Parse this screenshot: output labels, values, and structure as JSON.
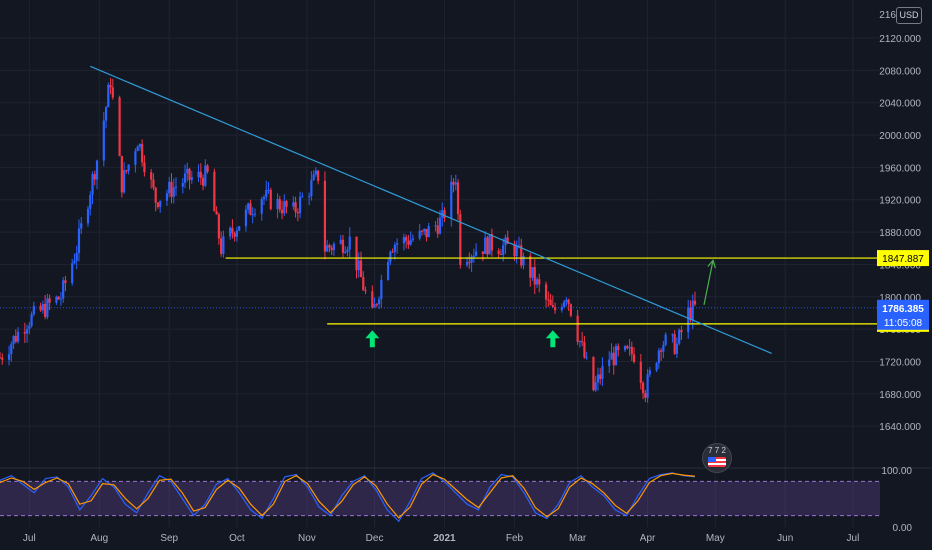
{
  "currency": "USD",
  "badge": {
    "text": "7 7 2",
    "icon": "us-flag-icon"
  },
  "chart_data": [
    {
      "type": "candlestick",
      "title": "",
      "colors": {
        "up": "#2962ff",
        "down": "#f23645",
        "background": "#131722",
        "grid": "#1f2330",
        "trendline": "#2f9bd6",
        "level": "#ffff00",
        "arrow": "#00e676",
        "projection": "#4caf50"
      },
      "x_start": "2020-06-18",
      "x_end": "2021-07-13",
      "xlim": [
        "2020-06-18",
        "2021-07-13"
      ],
      "ylim": [
        1592,
        2167
      ],
      "y_ticks": [
        1640,
        1680,
        1720,
        1760,
        1800,
        1840,
        1880,
        1920,
        1960,
        2000,
        2040,
        2080,
        2120
      ],
      "y_tick_labels": [
        "1640.000",
        "1680.000",
        "1720.000",
        "1760.000",
        "1800.000",
        "1840.000",
        "1880.000",
        "1920.000",
        "1960.000",
        "2000.000",
        "2040.000",
        "2080.000",
        "2120.000"
      ],
      "y_top_partial_label": "2160.000",
      "x_ticks": [
        {
          "date": "2020-07-01",
          "label": "Jul",
          "bold": false
        },
        {
          "date": "2020-08-01",
          "label": "Aug",
          "bold": false
        },
        {
          "date": "2020-09-01",
          "label": "Sep",
          "bold": false
        },
        {
          "date": "2020-10-01",
          "label": "Oct",
          "bold": false
        },
        {
          "date": "2020-11-01",
          "label": "Nov",
          "bold": false
        },
        {
          "date": "2020-12-01",
          "label": "Dec",
          "bold": false
        },
        {
          "date": "2021-01-01",
          "label": "2021",
          "bold": true
        },
        {
          "date": "2021-02-01",
          "label": "Feb",
          "bold": false
        },
        {
          "date": "2021-03-01",
          "label": "Mar",
          "bold": false
        },
        {
          "date": "2021-04-01",
          "label": "Apr",
          "bold": false
        },
        {
          "date": "2021-05-01",
          "label": "May",
          "bold": false
        },
        {
          "date": "2021-06-01",
          "label": "Jun",
          "bold": false
        },
        {
          "date": "2021-07-01",
          "label": "Jul",
          "bold": false
        }
      ],
      "price_path": [
        [
          "2020-06-18",
          1725
        ],
        [
          "2020-06-30",
          1770
        ],
        [
          "2020-07-15",
          1800
        ],
        [
          "2020-07-22",
          1860
        ],
        [
          "2020-07-31",
          1970
        ],
        [
          "2020-08-06",
          2068
        ],
        [
          "2020-08-11",
          1940
        ],
        [
          "2020-08-18",
          1995
        ],
        [
          "2020-08-26",
          1920
        ],
        [
          "2020-09-08",
          1945
        ],
        [
          "2020-09-18",
          1950
        ],
        [
          "2020-09-24",
          1860
        ],
        [
          "2020-09-30",
          1885
        ],
        [
          "2020-10-12",
          1925
        ],
        [
          "2020-10-26",
          1905
        ],
        [
          "2020-11-06",
          1950
        ],
        [
          "2020-11-09",
          1860
        ],
        [
          "2020-11-20",
          1870
        ],
        [
          "2020-11-30",
          1775
        ],
        [
          "2020-12-08",
          1865
        ],
        [
          "2020-12-22",
          1875
        ],
        [
          "2020-12-31",
          1895
        ],
        [
          "2021-01-06",
          1950
        ],
        [
          "2021-01-08",
          1850
        ],
        [
          "2021-01-20",
          1865
        ],
        [
          "2021-02-01",
          1860
        ],
        [
          "2021-02-08",
          1830
        ],
        [
          "2021-02-18",
          1780
        ],
        [
          "2021-02-24",
          1805
        ],
        [
          "2021-03-01",
          1755
        ],
        [
          "2021-03-08",
          1685
        ],
        [
          "2021-03-15",
          1725
        ],
        [
          "2021-03-26",
          1730
        ],
        [
          "2021-03-31",
          1685
        ],
        [
          "2021-04-07",
          1745
        ],
        [
          "2021-04-14",
          1740
        ],
        [
          "2021-04-19",
          1780
        ],
        [
          "2021-04-22",
          1786
        ]
      ],
      "current_price": "1786.385",
      "countdown": "11:05:08",
      "levels": [
        {
          "price": 1847.887,
          "label": "1847.887",
          "from": "2020-09-26"
        },
        {
          "price": 1766.538,
          "label": "1766.538",
          "from": "2020-11-10"
        }
      ],
      "trendline": {
        "start": [
          "2020-07-28",
          2085
        ],
        "end": [
          "2021-05-26",
          1730
        ]
      },
      "support_arrows": [
        {
          "date": "2020-11-30",
          "price": 1766
        },
        {
          "date": "2021-02-18",
          "price": 1766
        }
      ],
      "projection_arrow": {
        "start": [
          "2021-04-26",
          1790
        ],
        "end": [
          "2021-04-30",
          1845
        ]
      }
    },
    {
      "type": "line",
      "title": "",
      "ylim": [
        0,
        100
      ],
      "y_ticks": [
        0,
        100
      ],
      "y_tick_labels": [
        "0.00",
        "100.00"
      ],
      "band": [
        20,
        80
      ],
      "series": [
        {
          "color": "#2962ff",
          "values": [
            82,
            90,
            75,
            60,
            85,
            88,
            70,
            30,
            55,
            85,
            70,
            40,
            25,
            60,
            90,
            80,
            50,
            20,
            40,
            75,
            85,
            60,
            30,
            15,
            50,
            88,
            92,
            70,
            35,
            20,
            55,
            80,
            90,
            65,
            30,
            10,
            45,
            85,
            95,
            80,
            60,
            40,
            30,
            70,
            92,
            88,
            60,
            25,
            15,
            40,
            78,
            90,
            70,
            55,
            30,
            20,
            55,
            85,
            92,
            95,
            90,
            88
          ]
        },
        {
          "color": "#ff9800",
          "values": [
            78,
            86,
            80,
            66,
            78,
            86,
            76,
            40,
            46,
            76,
            74,
            50,
            32,
            50,
            82,
            84,
            60,
            28,
            34,
            66,
            82,
            68,
            40,
            20,
            40,
            80,
            90,
            76,
            45,
            25,
            45,
            74,
            88,
            72,
            40,
            16,
            35,
            75,
            92,
            84,
            66,
            48,
            34,
            60,
            86,
            90,
            68,
            34,
            18,
            32,
            70,
            86,
            76,
            60,
            38,
            24,
            46,
            78,
            90,
            94,
            91,
            89
          ]
        }
      ]
    }
  ]
}
